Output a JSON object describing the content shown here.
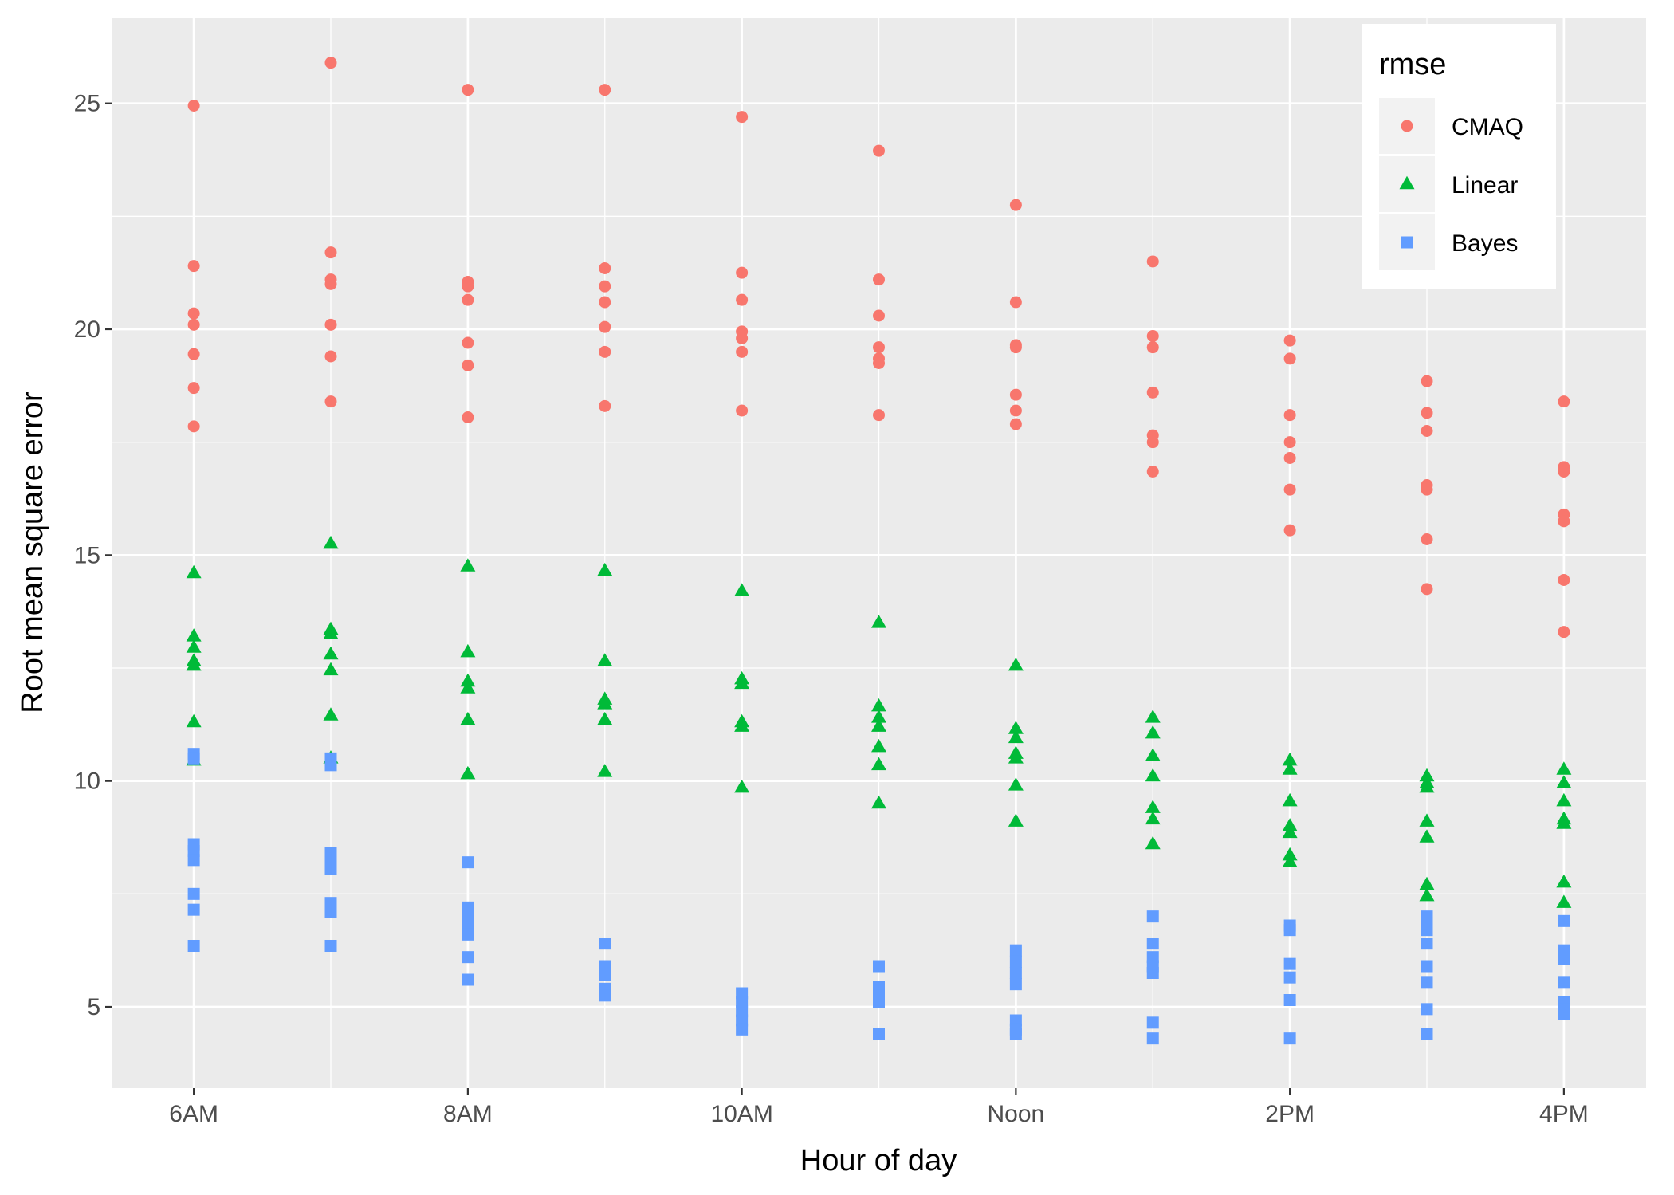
{
  "chart_data": {
    "type": "scatter",
    "xlabel": "Hour of day",
    "ylabel": "Root mean square error",
    "x_tick_labels": [
      "6AM",
      "8AM",
      "10AM",
      "Noon",
      "2PM",
      "4PM"
    ],
    "x_ticks": [
      6,
      8,
      10,
      12,
      14,
      16
    ],
    "y_ticks": [
      5,
      10,
      15,
      20,
      25
    ],
    "y_tick_labels": [
      "5",
      "10",
      "15",
      "20",
      "25"
    ],
    "xlim": [
      5.4,
      16.6
    ],
    "ylim": [
      3.2,
      26.9
    ],
    "grid": true,
    "legend": {
      "title": "rmse",
      "position": "top-right"
    },
    "series": [
      {
        "name": "CMAQ",
        "shape": "circle",
        "color": "#F8766D",
        "points": [
          [
            6,
            24.95
          ],
          [
            6,
            21.4
          ],
          [
            6,
            20.35
          ],
          [
            6,
            20.1
          ],
          [
            6,
            19.45
          ],
          [
            6,
            18.7
          ],
          [
            6,
            17.85
          ],
          [
            7,
            25.9
          ],
          [
            7,
            21.7
          ],
          [
            7,
            21.1
          ],
          [
            7,
            21.0
          ],
          [
            7,
            20.1
          ],
          [
            7,
            19.4
          ],
          [
            7,
            18.4
          ],
          [
            8,
            25.3
          ],
          [
            8,
            21.05
          ],
          [
            8,
            20.95
          ],
          [
            8,
            20.65
          ],
          [
            8,
            19.7
          ],
          [
            8,
            19.2
          ],
          [
            8,
            18.05
          ],
          [
            9,
            25.3
          ],
          [
            9,
            21.35
          ],
          [
            9,
            20.95
          ],
          [
            9,
            20.6
          ],
          [
            9,
            20.05
          ],
          [
            9,
            19.5
          ],
          [
            9,
            18.3
          ],
          [
            10,
            24.7
          ],
          [
            10,
            21.25
          ],
          [
            10,
            20.65
          ],
          [
            10,
            19.95
          ],
          [
            10,
            19.8
          ],
          [
            10,
            19.5
          ],
          [
            10,
            18.2
          ],
          [
            11,
            23.95
          ],
          [
            11,
            21.1
          ],
          [
            11,
            20.3
          ],
          [
            11,
            19.6
          ],
          [
            11,
            19.35
          ],
          [
            11,
            19.25
          ],
          [
            11,
            18.1
          ],
          [
            12,
            22.75
          ],
          [
            12,
            20.6
          ],
          [
            12,
            19.65
          ],
          [
            12,
            19.6
          ],
          [
            12,
            18.55
          ],
          [
            12,
            18.2
          ],
          [
            12,
            17.9
          ],
          [
            13,
            21.5
          ],
          [
            13,
            19.85
          ],
          [
            13,
            19.6
          ],
          [
            13,
            18.6
          ],
          [
            13,
            17.65
          ],
          [
            13,
            17.5
          ],
          [
            13,
            16.85
          ],
          [
            14,
            19.75
          ],
          [
            14,
            19.35
          ],
          [
            14,
            18.1
          ],
          [
            14,
            17.5
          ],
          [
            14,
            17.15
          ],
          [
            14,
            16.45
          ],
          [
            14,
            15.55
          ],
          [
            15,
            18.85
          ],
          [
            15,
            18.15
          ],
          [
            15,
            17.75
          ],
          [
            15,
            16.55
          ],
          [
            15,
            16.45
          ],
          [
            15,
            15.35
          ],
          [
            15,
            14.25
          ],
          [
            16,
            18.4
          ],
          [
            16,
            16.95
          ],
          [
            16,
            16.85
          ],
          [
            16,
            15.9
          ],
          [
            16,
            15.75
          ],
          [
            16,
            14.45
          ],
          [
            16,
            13.3
          ]
        ]
      },
      {
        "name": "Linear",
        "shape": "triangle",
        "color": "#00BA38",
        "points": [
          [
            6,
            14.6
          ],
          [
            6,
            13.2
          ],
          [
            6,
            12.95
          ],
          [
            6,
            12.65
          ],
          [
            6,
            12.55
          ],
          [
            6,
            11.3
          ],
          [
            6,
            10.45
          ],
          [
            7,
            15.25
          ],
          [
            7,
            13.35
          ],
          [
            7,
            13.25
          ],
          [
            7,
            12.8
          ],
          [
            7,
            12.45
          ],
          [
            7,
            11.45
          ],
          [
            7,
            10.5
          ],
          [
            8,
            14.75
          ],
          [
            8,
            12.85
          ],
          [
            8,
            12.2
          ],
          [
            8,
            12.05
          ],
          [
            8,
            11.35
          ],
          [
            8,
            10.15
          ],
          [
            9,
            14.65
          ],
          [
            9,
            12.65
          ],
          [
            9,
            11.8
          ],
          [
            9,
            11.7
          ],
          [
            9,
            11.35
          ],
          [
            9,
            10.2
          ],
          [
            10,
            14.2
          ],
          [
            10,
            12.25
          ],
          [
            10,
            12.15
          ],
          [
            10,
            11.3
          ],
          [
            10,
            11.2
          ],
          [
            10,
            9.85
          ],
          [
            11,
            13.5
          ],
          [
            11,
            11.65
          ],
          [
            11,
            11.4
          ],
          [
            11,
            11.2
          ],
          [
            11,
            10.75
          ],
          [
            11,
            10.35
          ],
          [
            11,
            9.5
          ],
          [
            12,
            12.55
          ],
          [
            12,
            11.15
          ],
          [
            12,
            10.95
          ],
          [
            12,
            10.6
          ],
          [
            12,
            10.5
          ],
          [
            12,
            9.9
          ],
          [
            12,
            9.1
          ],
          [
            13,
            11.4
          ],
          [
            13,
            11.05
          ],
          [
            13,
            10.55
          ],
          [
            13,
            10.1
          ],
          [
            13,
            9.4
          ],
          [
            13,
            9.15
          ],
          [
            13,
            8.6
          ],
          [
            14,
            10.45
          ],
          [
            14,
            10.25
          ],
          [
            14,
            9.55
          ],
          [
            14,
            9.0
          ],
          [
            14,
            8.85
          ],
          [
            14,
            8.35
          ],
          [
            14,
            8.2
          ],
          [
            15,
            10.1
          ],
          [
            15,
            9.95
          ],
          [
            15,
            9.85
          ],
          [
            15,
            9.1
          ],
          [
            15,
            8.75
          ],
          [
            15,
            7.7
          ],
          [
            15,
            7.45
          ],
          [
            16,
            10.25
          ],
          [
            16,
            9.95
          ],
          [
            16,
            9.55
          ],
          [
            16,
            9.15
          ],
          [
            16,
            9.05
          ],
          [
            16,
            7.75
          ],
          [
            16,
            7.3
          ]
        ]
      },
      {
        "name": "Bayes",
        "shape": "square",
        "color": "#619CFF",
        "points": [
          [
            6,
            10.6
          ],
          [
            6,
            10.5
          ],
          [
            6,
            8.6
          ],
          [
            6,
            8.45
          ],
          [
            6,
            8.25
          ],
          [
            6,
            7.5
          ],
          [
            6,
            7.15
          ],
          [
            6,
            6.35
          ],
          [
            7,
            10.5
          ],
          [
            7,
            10.35
          ],
          [
            7,
            8.4
          ],
          [
            7,
            8.2
          ],
          [
            7,
            8.05
          ],
          [
            7,
            7.3
          ],
          [
            7,
            7.1
          ],
          [
            7,
            6.35
          ],
          [
            8,
            8.2
          ],
          [
            8,
            7.2
          ],
          [
            8,
            7.0
          ],
          [
            8,
            6.8
          ],
          [
            8,
            6.6
          ],
          [
            8,
            6.1
          ],
          [
            8,
            5.6
          ],
          [
            9,
            6.4
          ],
          [
            9,
            5.9
          ],
          [
            9,
            5.7
          ],
          [
            9,
            5.4
          ],
          [
            9,
            5.25
          ],
          [
            10,
            5.3
          ],
          [
            10,
            5.1
          ],
          [
            10,
            4.9
          ],
          [
            10,
            4.7
          ],
          [
            10,
            4.5
          ],
          [
            11,
            5.9
          ],
          [
            11,
            5.45
          ],
          [
            11,
            5.25
          ],
          [
            11,
            5.1
          ],
          [
            11,
            4.4
          ],
          [
            12,
            6.25
          ],
          [
            12,
            6.0
          ],
          [
            12,
            5.75
          ],
          [
            12,
            5.5
          ],
          [
            12,
            4.7
          ],
          [
            12,
            4.5
          ],
          [
            12,
            4.4
          ],
          [
            13,
            7.0
          ],
          [
            13,
            6.4
          ],
          [
            13,
            6.1
          ],
          [
            13,
            5.9
          ],
          [
            13,
            5.75
          ],
          [
            13,
            4.65
          ],
          [
            13,
            4.3
          ],
          [
            14,
            6.8
          ],
          [
            14,
            6.7
          ],
          [
            14,
            5.95
          ],
          [
            14,
            5.65
          ],
          [
            14,
            5.15
          ],
          [
            14,
            4.3
          ],
          [
            15,
            7.0
          ],
          [
            15,
            6.85
          ],
          [
            15,
            6.7
          ],
          [
            15,
            6.4
          ],
          [
            15,
            5.9
          ],
          [
            15,
            5.55
          ],
          [
            15,
            4.95
          ],
          [
            15,
            4.4
          ],
          [
            16,
            6.9
          ],
          [
            16,
            6.25
          ],
          [
            16,
            6.05
          ],
          [
            16,
            5.55
          ],
          [
            16,
            5.1
          ],
          [
            16,
            4.95
          ],
          [
            16,
            4.85
          ]
        ]
      }
    ]
  }
}
